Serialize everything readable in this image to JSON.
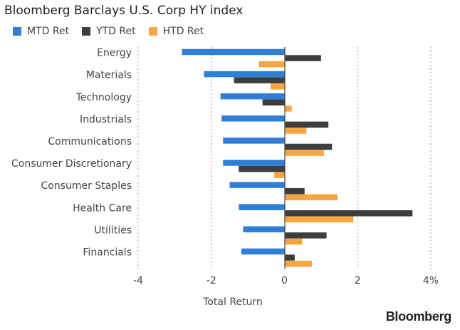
{
  "chart_data": {
    "type": "bar",
    "orientation": "horizontal",
    "title": "Bloomberg Barclays U.S. Corp HY index",
    "xlabel": "Total Return",
    "ylabel": "",
    "xlim": [
      -4,
      4
    ],
    "ticks": [
      "-4",
      "-2",
      "0",
      "2",
      "4%"
    ],
    "tick_values": [
      -4,
      -2,
      0,
      2,
      4
    ],
    "grid": "vertical-dotted",
    "legend_position": "top-left",
    "categories": [
      "Energy",
      "Materials",
      "Technology",
      "Industrials",
      "Communications",
      "Consumer Discretionary",
      "Consumer Staples",
      "Health Care",
      "Utilities",
      "Financials"
    ],
    "series": [
      {
        "name": "MTD Ret",
        "color": "#2f7ed8",
        "values": [
          -2.8,
          -2.2,
          -1.75,
          -1.72,
          -1.68,
          -1.68,
          -1.5,
          -1.25,
          -1.13,
          -1.18
        ]
      },
      {
        "name": "YTD Ret",
        "color": "#3d3d3d",
        "values": [
          1.0,
          -1.38,
          -0.6,
          1.2,
          1.3,
          -1.25,
          0.55,
          3.5,
          1.15,
          0.28
        ]
      },
      {
        "name": "HTD Ret",
        "color": "#f7a541",
        "values": [
          -0.7,
          -0.38,
          0.2,
          0.6,
          1.08,
          -0.28,
          1.45,
          1.88,
          0.48,
          0.75
        ]
      }
    ]
  },
  "brand": "Bloomberg"
}
